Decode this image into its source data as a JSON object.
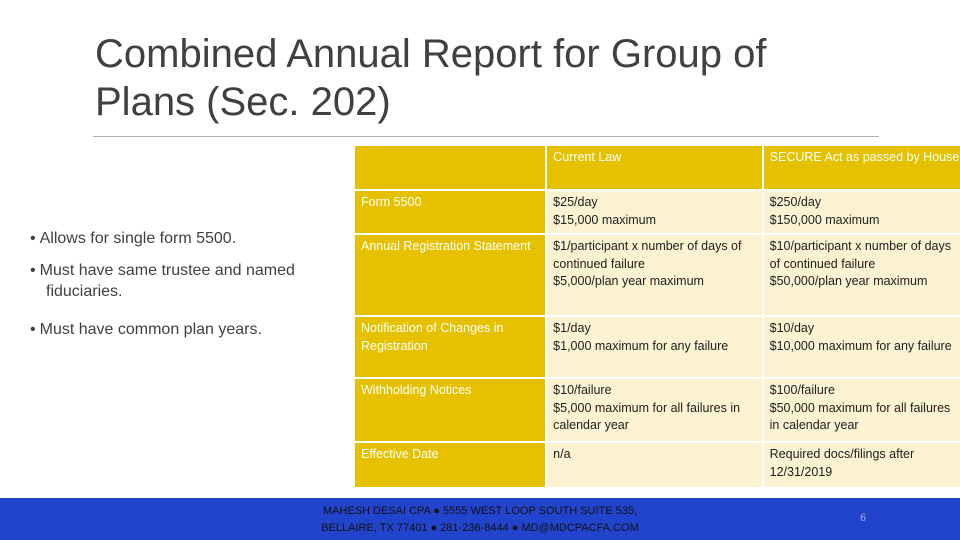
{
  "slide": {
    "title": "Combined Annual Report for Group of Plans (Sec. 202)",
    "bullets": [
      {
        "text": "Allows for single form 5500."
      },
      {
        "text": "Must have same trustee and named",
        "cont": "fiduciaries."
      },
      {
        "text": "Must have common plan years."
      }
    ]
  },
  "table": {
    "headers": [
      "",
      "Current Law",
      "SECURE Act as passed by House"
    ],
    "rows": [
      {
        "label": "Form 5500",
        "current": "$25/day\n$15,000 maximum",
        "secure": "$250/day\n$150,000 maximum"
      },
      {
        "label": "Annual Registration Statement",
        "current": "$1/participant x number of days of continued failure\n$5,000/plan year maximum",
        "secure": "$10/participant x number of days of continued failure\n$50,000/plan year maximum"
      },
      {
        "label": "Notification of Changes in Registration",
        "current": "$1/day\n$1,000 maximum for any failure",
        "secure": "$10/day\n$10,000 maximum for any failure"
      },
      {
        "label": "Withholding Notices",
        "current": "$10/failure\n$5,000 maximum for all failures in calendar year",
        "secure": "$100/failure\n$50,000 maximum for all failures in calendar year"
      },
      {
        "label": "Effective Date",
        "current": "n/a",
        "secure": "Required docs/filings after 12/31/2019"
      }
    ]
  },
  "footer": {
    "line1": "MAHESH DESAI CPA ● 5555 WEST LOOP SOUTH SUITE 535,",
    "line2": "BELLAIRE, TX 77401 ● 281-236-8444 ● MD@MDCPACFA.COM",
    "page": "6"
  },
  "colors": {
    "header_gold": "#e5c100",
    "cell_cream": "#fdf3d3",
    "footer_blue": "#2244cc"
  }
}
